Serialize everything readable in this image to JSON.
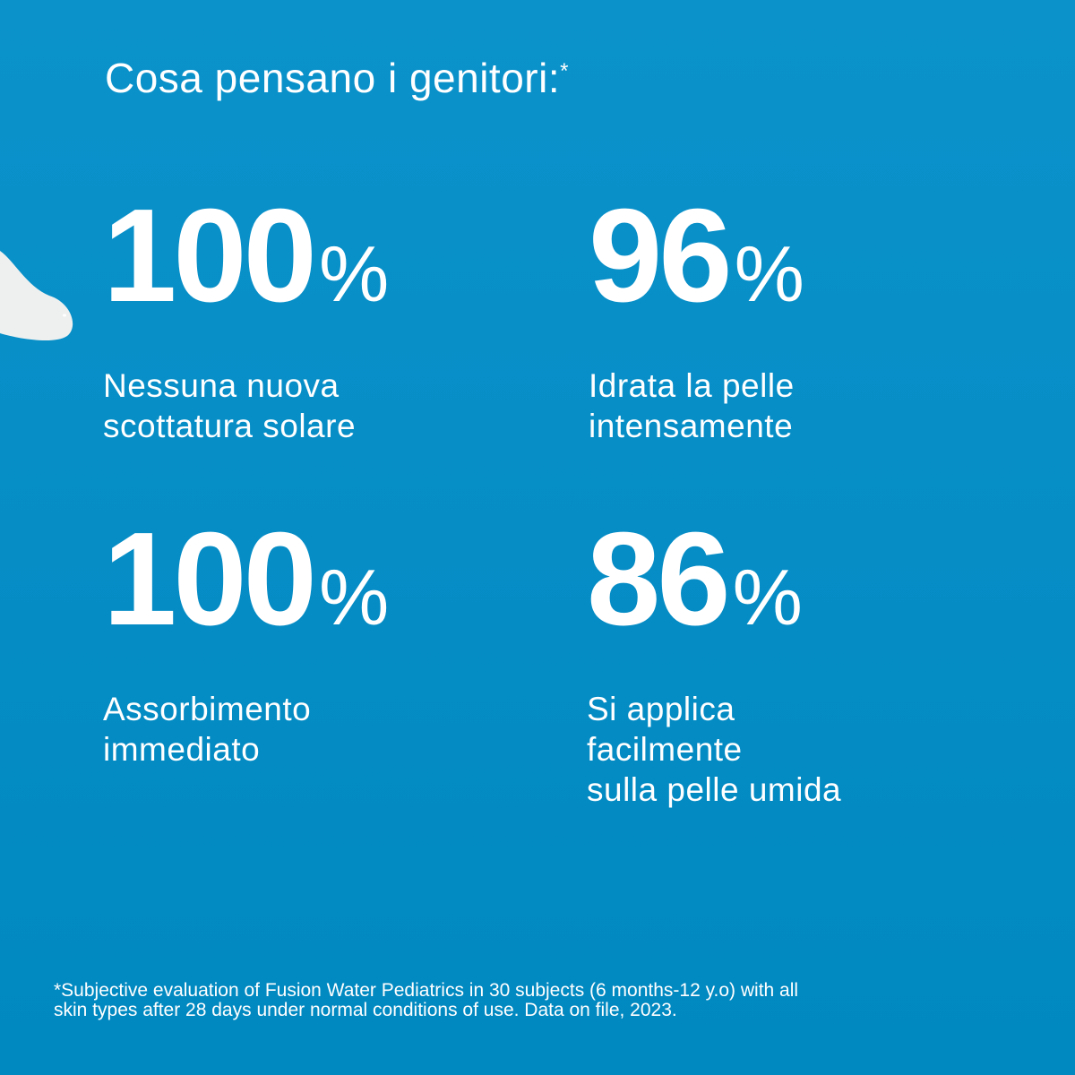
{
  "title": "Cosa pensano i genitori:",
  "title_asterisk": "*",
  "stats": [
    {
      "value": "100",
      "unit": "%",
      "label_lines": [
        "Nessuna nuova",
        "scottatura solare"
      ]
    },
    {
      "value": "96",
      "unit": "%",
      "label_lines": [
        "Idrata la pelle",
        "intensamente"
      ]
    },
    {
      "value": "100",
      "unit": "%",
      "label_lines": [
        "Assorbimento",
        "immediato"
      ]
    },
    {
      "value": "86",
      "unit": "%",
      "label_lines": [
        "Si applica",
        "facilmente",
        "sulla pelle umida"
      ]
    }
  ],
  "footnote_lines": [
    "*Subjective evaluation of Fusion Water Pediatrics in 30 subjects (6 months-12 y.o) with all",
    "skin types after 28 days under normal conditions of use. Data on file, 2023."
  ],
  "colors": {
    "background": "#0a8fc8",
    "text": "#ffffff"
  }
}
